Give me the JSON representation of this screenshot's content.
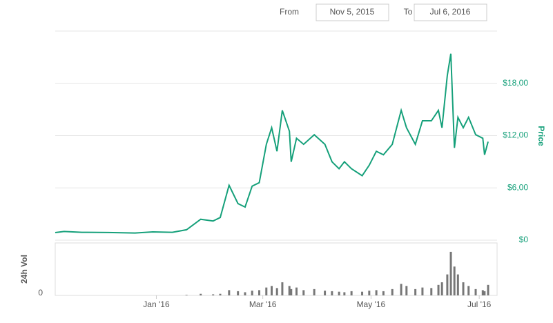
{
  "range": {
    "from_label": "From",
    "from": "Nov 5, 2015",
    "to_label": "To",
    "to": "Jul 6, 2016"
  },
  "chart_data": {
    "type": "line",
    "y_label": "Price",
    "color": "#15a07a",
    "grid": true,
    "x": [
      "2015-11-05",
      "2015-11-10",
      "2015-11-20",
      "2015-12-05",
      "2015-12-20",
      "2015-12-30",
      "2016-01-10",
      "2016-01-18",
      "2016-01-26",
      "2016-02-02",
      "2016-02-06",
      "2016-02-11",
      "2016-02-16",
      "2016-02-20",
      "2016-02-24",
      "2016-02-28",
      "2016-03-03",
      "2016-03-06",
      "2016-03-09",
      "2016-03-12",
      "2016-03-16",
      "2016-03-17",
      "2016-03-20",
      "2016-03-24",
      "2016-03-30",
      "2016-04-05",
      "2016-04-09",
      "2016-04-13",
      "2016-04-16",
      "2016-04-20",
      "2016-04-26",
      "2016-04-30",
      "2016-05-04",
      "2016-05-08",
      "2016-05-13",
      "2016-05-18",
      "2016-05-21",
      "2016-05-26",
      "2016-05-30",
      "2016-06-04",
      "2016-06-08",
      "2016-06-10",
      "2016-06-13",
      "2016-06-15",
      "2016-06-17",
      "2016-06-19",
      "2016-06-22",
      "2016-06-25",
      "2016-06-29",
      "2016-07-03",
      "2016-07-04",
      "2016-07-06"
    ],
    "values": [
      0.87,
      1.0,
      0.9,
      0.88,
      0.82,
      0.95,
      0.9,
      1.2,
      2.4,
      2.2,
      2.6,
      6.3,
      4.2,
      3.8,
      6.2,
      6.6,
      11,
      12.9,
      10.2,
      14.9,
      12.5,
      9,
      11.7,
      11,
      12.1,
      11,
      9,
      8.2,
      9,
      8.2,
      7.4,
      8.6,
      10.2,
      9.8,
      11,
      14.9,
      12.9,
      11,
      13.7,
      13.7,
      14.9,
      12.9,
      18.9,
      21.4,
      10.6,
      14.1,
      12.9,
      14.1,
      12.1,
      11.7,
      9.8,
      11.3
    ],
    "xlim": [
      "2015-11-05",
      "2016-07-06"
    ],
    "xticks": [
      {
        "value": "2016-01-01",
        "label": "Jan '16"
      },
      {
        "value": "2016-03-01",
        "label": "Mar '16"
      },
      {
        "value": "2016-05-01",
        "label": "May '16"
      },
      {
        "value": "2016-07-01",
        "label": "Jul '16"
      }
    ],
    "ylim": [
      0,
      24
    ],
    "yticks": [
      {
        "value": 0,
        "label": "$0"
      },
      {
        "value": 6,
        "label": "$6,00"
      },
      {
        "value": 12,
        "label": "$12,00"
      },
      {
        "value": 18,
        "label": "$18,00"
      }
    ],
    "volume": {
      "name": "24h Vol",
      "color": "#777777",
      "ylim": [
        0,
        100
      ],
      "yticks": [
        0
      ],
      "values": [
        0,
        0,
        0,
        0,
        0,
        0,
        0,
        1,
        3,
        2,
        3,
        10,
        8,
        6,
        9,
        10,
        15,
        18,
        14,
        25,
        18,
        12,
        15,
        10,
        12,
        9,
        8,
        7,
        6,
        8,
        7,
        9,
        10,
        8,
        12,
        22,
        18,
        12,
        15,
        14,
        20,
        25,
        40,
        83,
        55,
        40,
        25,
        18,
        12,
        10,
        8,
        20
      ]
    }
  }
}
